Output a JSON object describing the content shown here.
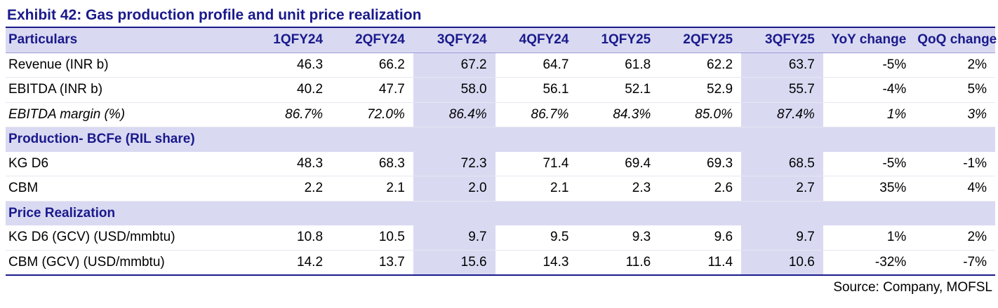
{
  "title": "Exhibit 42: Gas production profile and unit price realization",
  "headers": [
    "Particulars",
    "1QFY24",
    "2QFY24",
    "3QFY24",
    "4QFY24",
    "1QFY25",
    "2QFY25",
    "3QFY25",
    "YoY change",
    "QoQ change"
  ],
  "sections": [
    {
      "rows": [
        {
          "label": "Revenue (INR b)",
          "values": [
            "46.3",
            "66.2",
            "67.2",
            "64.7",
            "61.8",
            "62.2",
            "63.7",
            "-5%",
            "2%"
          ]
        },
        {
          "label": "EBITDA (INR b)",
          "values": [
            "40.2",
            "47.7",
            "58.0",
            "56.1",
            "52.1",
            "52.9",
            "55.7",
            "-4%",
            "5%"
          ]
        },
        {
          "label": "EBITDA margin (%)",
          "values": [
            "86.7%",
            "72.0%",
            "86.4%",
            "86.7%",
            "84.3%",
            "85.0%",
            "87.4%",
            "1%",
            "3%"
          ],
          "italic": true
        }
      ]
    },
    {
      "title": "Production- BCFe (RIL share)",
      "rows": [
        {
          "label": "KG D6",
          "values": [
            "48.3",
            "68.3",
            "72.3",
            "71.4",
            "69.4",
            "69.3",
            "68.5",
            "-5%",
            "-1%"
          ]
        },
        {
          "label": "CBM",
          "values": [
            "2.2",
            "2.1",
            "2.0",
            "2.1",
            "2.3",
            "2.6",
            "2.7",
            "35%",
            "4%"
          ]
        }
      ]
    },
    {
      "title": "Price Realization",
      "rows": [
        {
          "label": "KG D6 (GCV) (USD/mmbtu)",
          "values": [
            "10.8",
            "10.5",
            "9.7",
            "9.5",
            "9.3",
            "9.6",
            "9.7",
            "1%",
            "2%"
          ]
        },
        {
          "label": "CBM (GCV) (USD/mmbtu)",
          "values": [
            "14.2",
            "13.7",
            "15.6",
            "14.3",
            "11.6",
            "11.4",
            "10.6",
            "-32%",
            "-7%"
          ]
        }
      ]
    }
  ],
  "source": "Source: Company, MOFSL",
  "colors": {
    "accent": "#1a1a8c",
    "header_fill": "#d9d9f2"
  }
}
